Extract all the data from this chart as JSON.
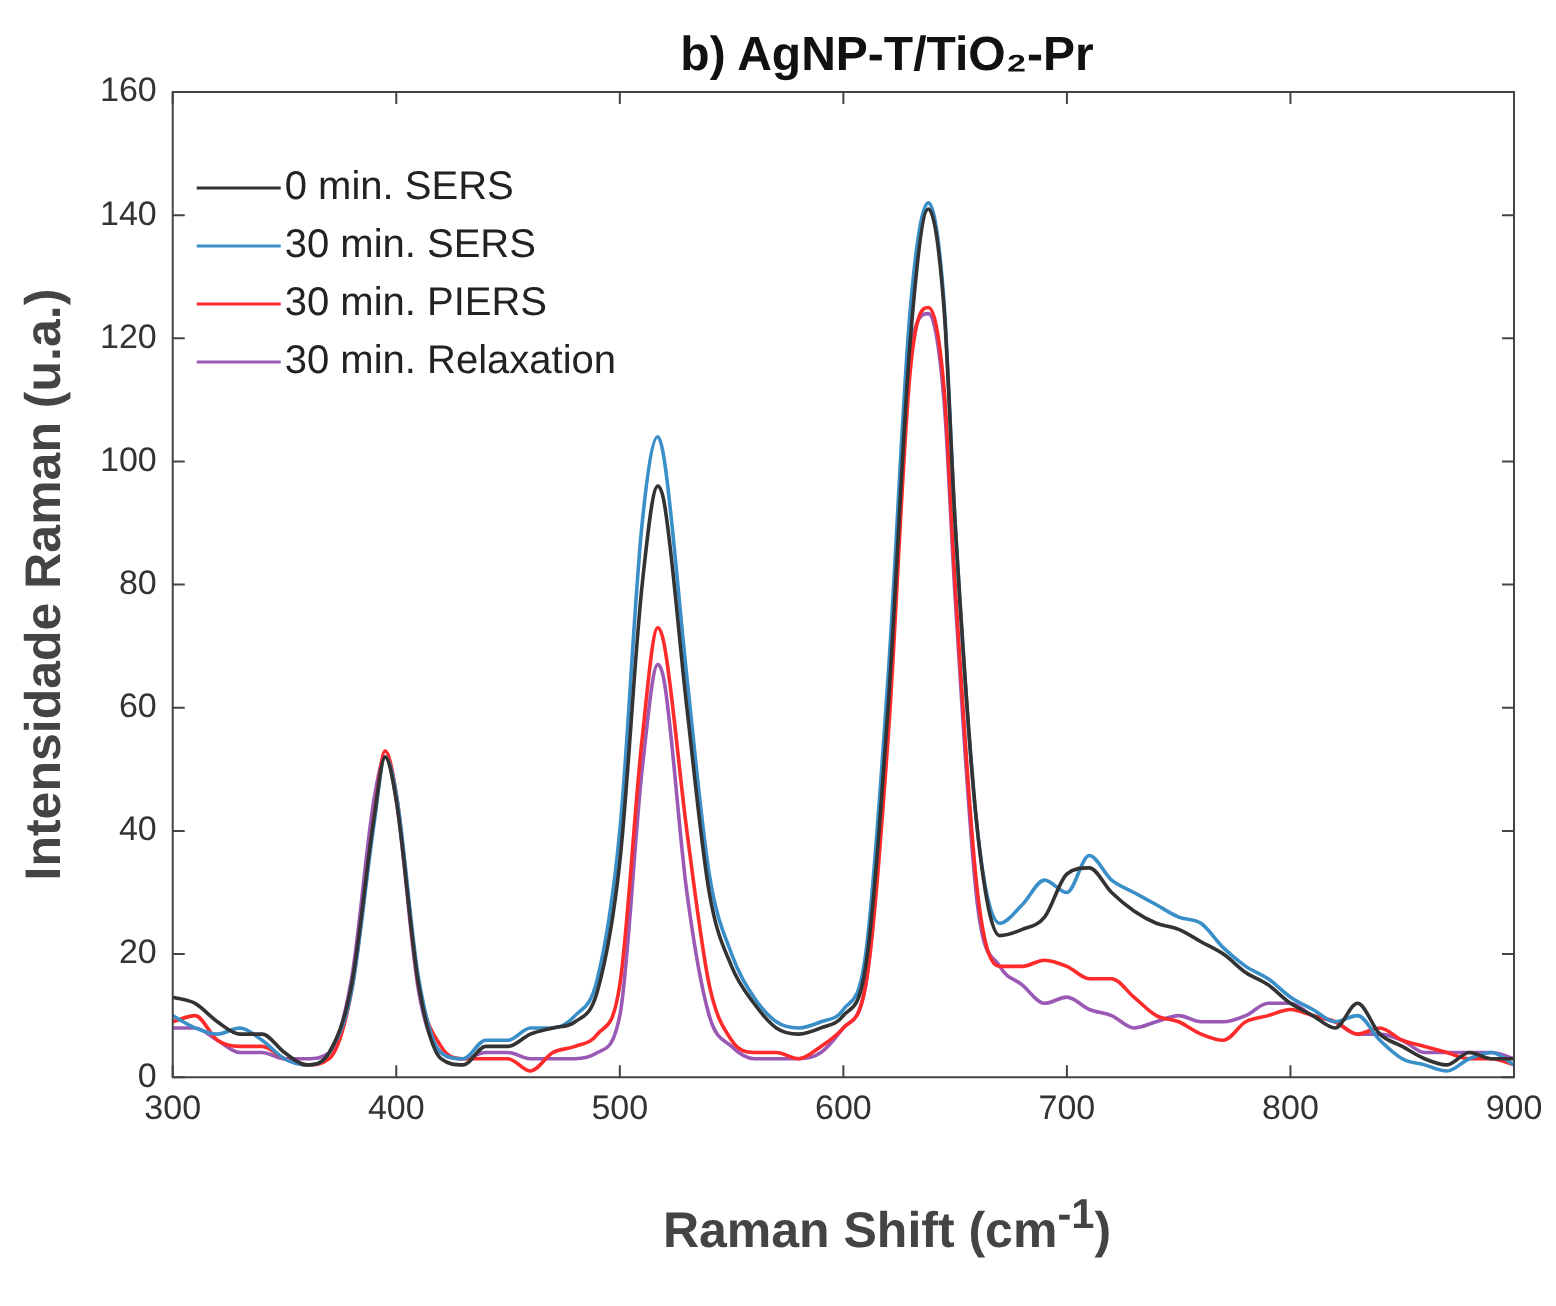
{
  "chart_data": {
    "type": "line",
    "title": "b) AgNP-T/TiO₂-Pr",
    "xlabel": "Raman Shift (cm$^{-1}$)",
    "ylabel": "Intensidade Raman (u.a.)",
    "x": [
      300,
      310,
      320,
      330,
      340,
      350,
      360,
      370,
      380,
      390,
      395,
      400,
      410,
      420,
      430,
      440,
      450,
      460,
      470,
      480,
      490,
      500,
      510,
      517,
      520,
      530,
      540,
      550,
      560,
      570,
      580,
      590,
      600,
      610,
      620,
      630,
      638,
      645,
      650,
      660,
      670,
      680,
      690,
      700,
      710,
      720,
      730,
      740,
      750,
      760,
      770,
      780,
      790,
      800,
      810,
      820,
      830,
      840,
      850,
      860,
      870,
      880,
      890,
      900
    ],
    "series": [
      {
        "name": "0 min. SERS",
        "color": "#333333",
        "values": [
          13,
          12,
          9,
          7,
          7,
          4,
          2,
          4,
          15,
          42,
          52,
          45,
          15,
          3,
          2,
          5,
          5,
          7,
          8,
          9,
          14,
          35,
          80,
          96,
          93,
          60,
          30,
          18,
          12,
          8,
          7,
          8,
          10,
          18,
          60,
          120,
          141,
          125,
          90,
          40,
          23,
          24,
          26,
          33,
          34,
          30,
          27,
          25,
          24,
          22,
          20,
          17,
          15,
          12,
          10,
          8,
          12,
          7,
          5,
          3,
          2,
          4,
          3,
          3
        ]
      },
      {
        "name": "30 min. SERS",
        "color": "#3a8fc8",
        "values": [
          10,
          8,
          7,
          8,
          6,
          3,
          2,
          4,
          14,
          41,
          52,
          46,
          16,
          4,
          3,
          6,
          6,
          8,
          8,
          10,
          16,
          40,
          90,
          104,
          100,
          65,
          33,
          20,
          13,
          9,
          8,
          9,
          11,
          20,
          65,
          125,
          142,
          126,
          90,
          40,
          25,
          28,
          32,
          30,
          36,
          32,
          30,
          28,
          26,
          25,
          21,
          18,
          16,
          13,
          11,
          9,
          10,
          6,
          3,
          2,
          1,
          3,
          4,
          2
        ]
      },
      {
        "name": "30 min. PIERS",
        "color": "#ff2a2a",
        "values": [
          9,
          10,
          6,
          5,
          5,
          3,
          2,
          3,
          14,
          42,
          53,
          46,
          15,
          5,
          3,
          3,
          3,
          1,
          4,
          5,
          7,
          15,
          55,
          73,
          70,
          40,
          15,
          6,
          4,
          4,
          3,
          5,
          8,
          15,
          55,
          115,
          125,
          112,
          80,
          30,
          18,
          18,
          19,
          18,
          16,
          16,
          13,
          10,
          9,
          7,
          6,
          9,
          10,
          11,
          10,
          9,
          7,
          8,
          6,
          5,
          4,
          3,
          3,
          2
        ]
      },
      {
        "name": "30 min. Relaxation",
        "color": "#9b59b6",
        "values": [
          8,
          8,
          6,
          4,
          4,
          3,
          3,
          4,
          16,
          45,
          52,
          45,
          14,
          4,
          3,
          4,
          4,
          3,
          3,
          3,
          4,
          10,
          50,
          67,
          64,
          30,
          10,
          5,
          3,
          3,
          3,
          4,
          8,
          15,
          58,
          118,
          124,
          110,
          78,
          28,
          18,
          15,
          12,
          13,
          11,
          10,
          8,
          9,
          10,
          9,
          9,
          10,
          12,
          12,
          10,
          9,
          7,
          7,
          6,
          4,
          4,
          4,
          4,
          3
        ]
      }
    ],
    "xlim": [
      300,
      900
    ],
    "xticks": [
      300,
      400,
      500,
      600,
      700,
      800,
      900
    ],
    "ylim": [
      0,
      160
    ],
    "yticks": [
      0,
      20,
      40,
      60,
      80,
      100,
      120,
      140,
      160
    ],
    "legend": "top left",
    "grid": false
  }
}
